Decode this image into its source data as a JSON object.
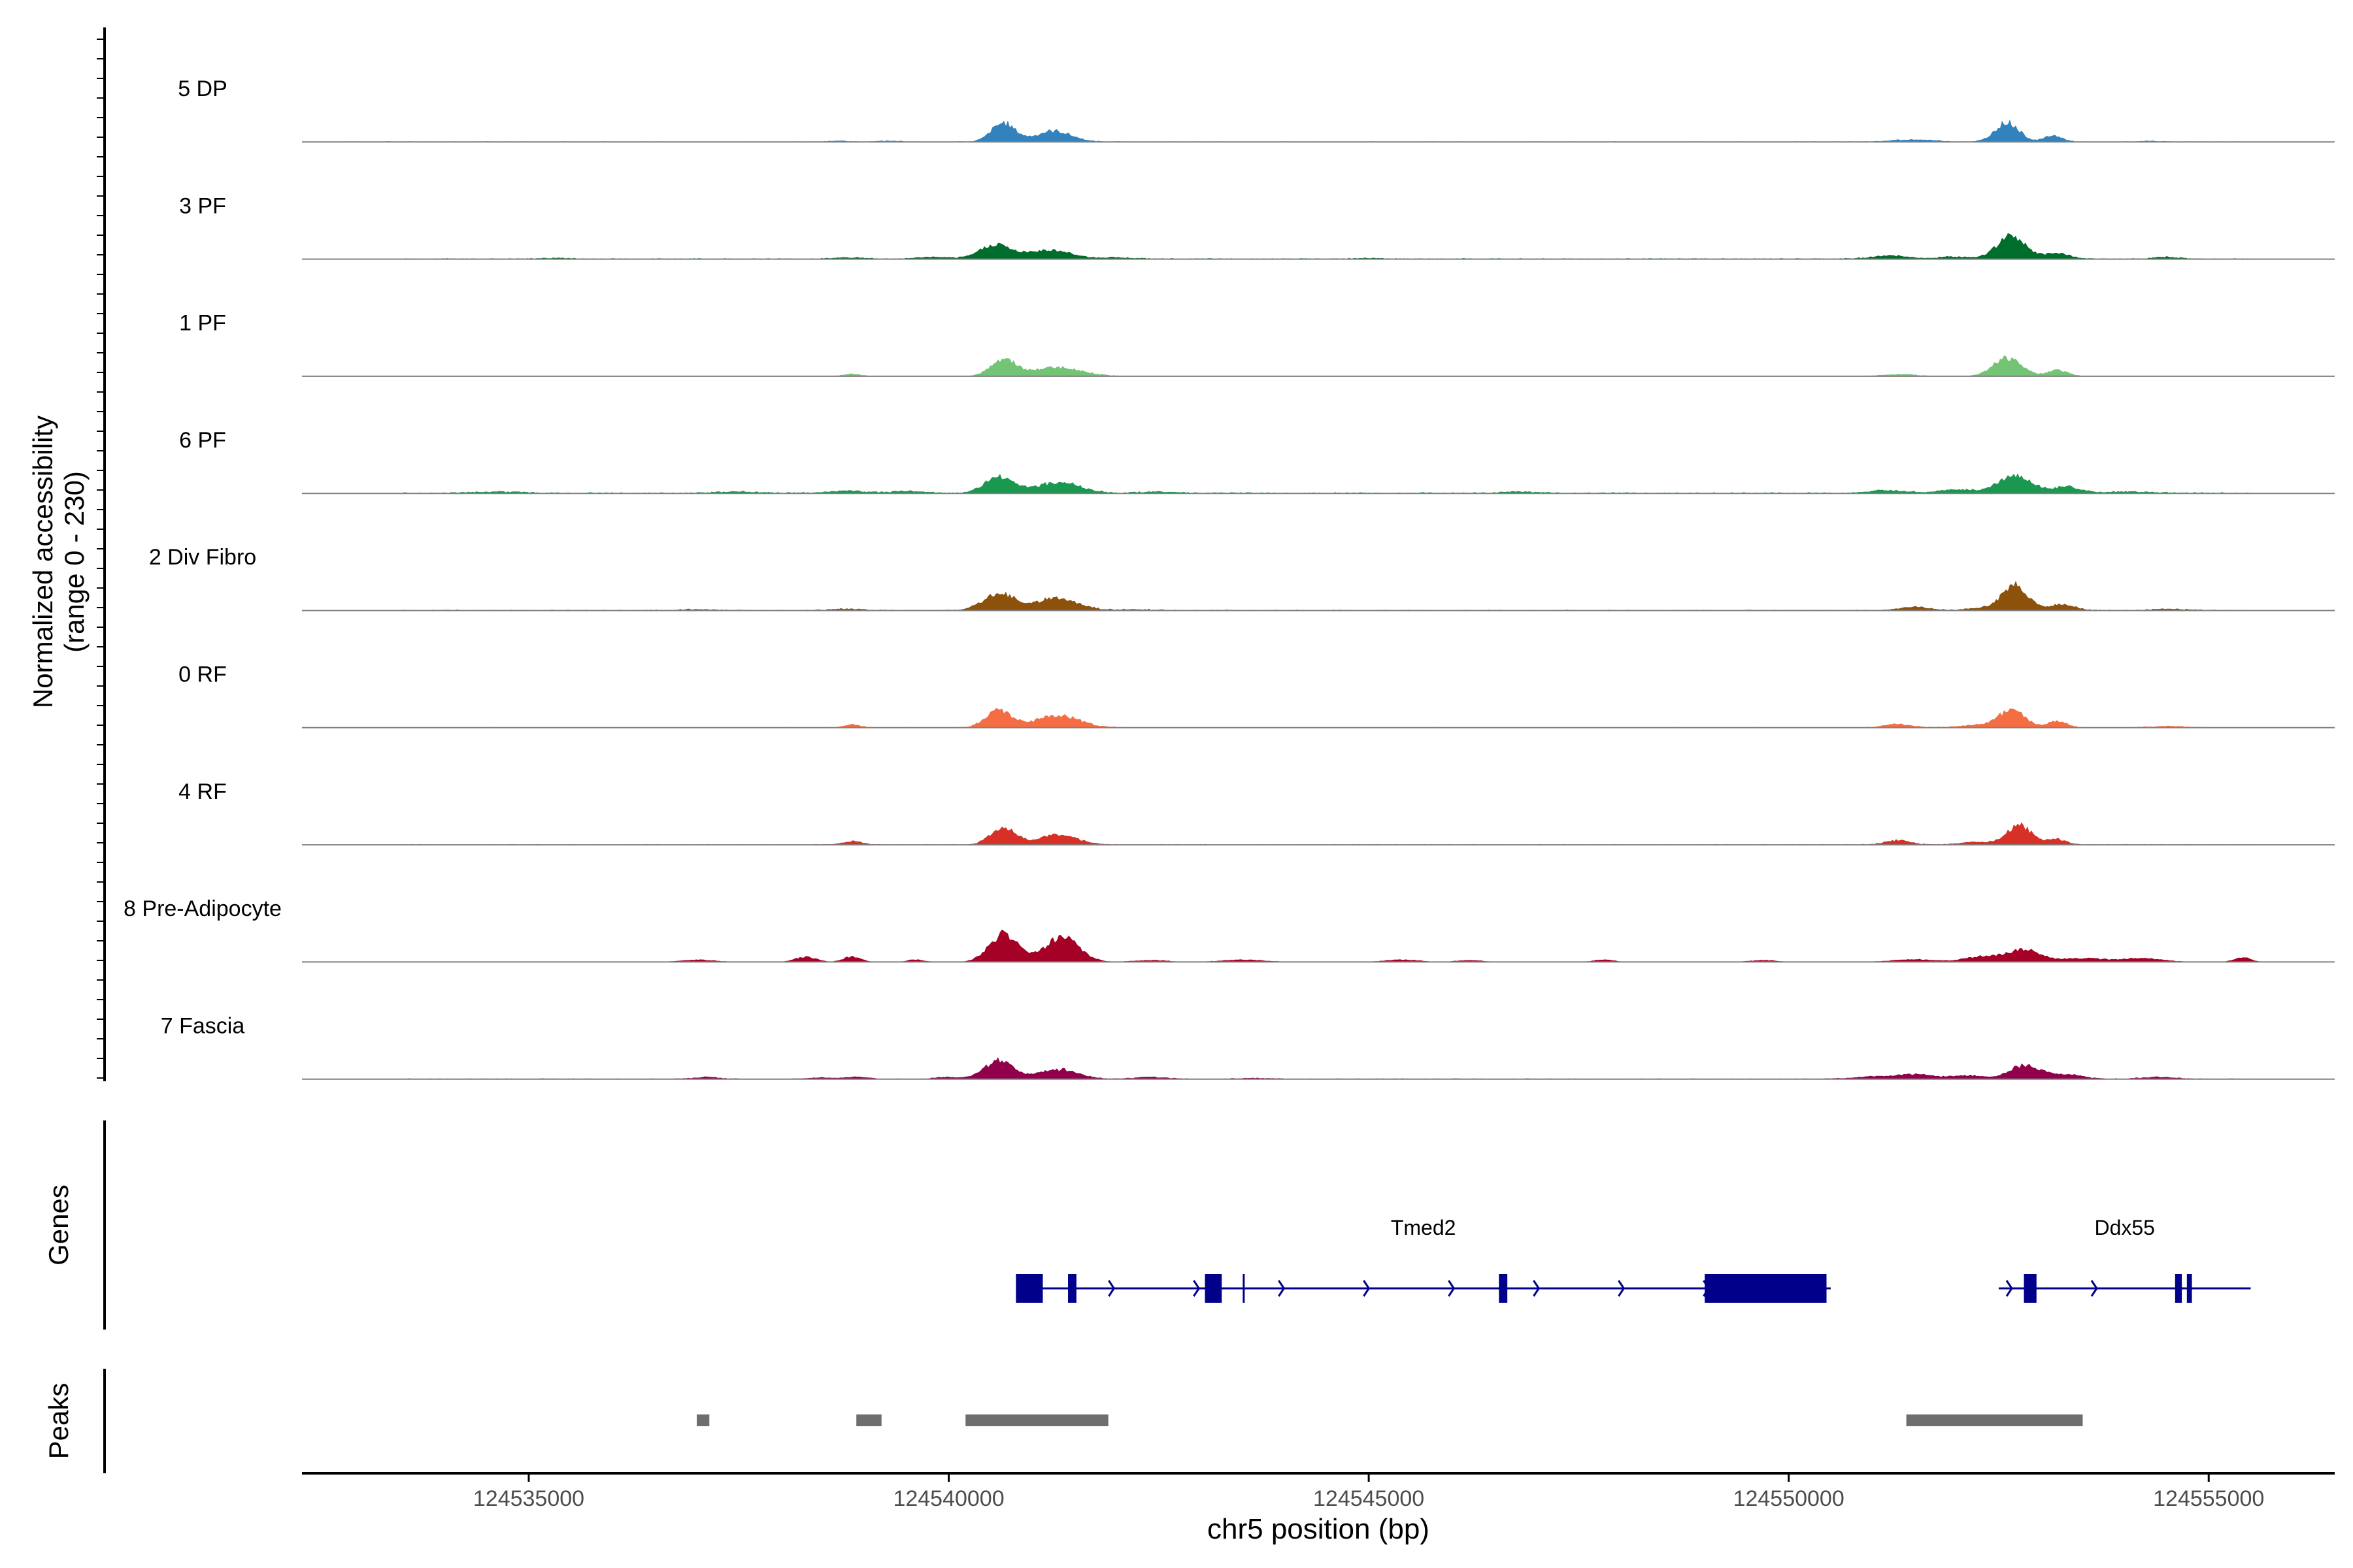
{
  "chart_data": {
    "type": "area",
    "title": "",
    "ylabel_line1": "Normalized accessibility",
    "ylabel_line2": "(range 0 - 230)",
    "y_range": [
      0,
      230
    ],
    "xlabel": "chr5 position (bp)",
    "x_range": [
      124532300,
      124556500
    ],
    "x_ticks": [
      124535000,
      124540000,
      124545000,
      124550000,
      124555000
    ],
    "x_tick_labels": [
      "124535000",
      "124540000",
      "124545000",
      "124550000",
      "124555000"
    ],
    "tracks": [
      {
        "name": "5 DP",
        "color": "#3182bd",
        "peaks": [
          [
            124538700,
            3,
            90
          ],
          [
            124539300,
            2,
            120
          ],
          [
            124540650,
            42,
            140
          ],
          [
            124541250,
            24,
            210
          ],
          [
            124551500,
            5,
            250
          ],
          [
            124552600,
            44,
            140
          ],
          [
            124553150,
            14,
            110
          ],
          [
            124554300,
            2,
            100
          ]
        ],
        "noise": 1.5,
        "spread": [
          124532600,
          124555500
        ]
      },
      {
        "name": "3 PF",
        "color": "#006d2c",
        "peaks": [
          [
            124535300,
            2,
            150
          ],
          [
            124538800,
            3,
            180
          ],
          [
            124539800,
            4,
            180
          ],
          [
            124540550,
            32,
            180
          ],
          [
            124541200,
            20,
            250
          ],
          [
            124542000,
            3,
            200
          ],
          [
            124545000,
            2,
            150
          ],
          [
            124551200,
            7,
            220
          ],
          [
            124552000,
            5,
            200
          ],
          [
            124552650,
            50,
            170
          ],
          [
            124553200,
            12,
            150
          ],
          [
            124554500,
            4,
            150
          ]
        ],
        "noise": 2.0,
        "spread": [
          124533500,
          124555500
        ]
      },
      {
        "name": "1 PF",
        "color": "#74c476",
        "peaks": [
          [
            124538850,
            5,
            100
          ],
          [
            124540650,
            38,
            150
          ],
          [
            124541300,
            20,
            280
          ],
          [
            124551300,
            4,
            200
          ],
          [
            124552600,
            40,
            170
          ],
          [
            124553200,
            13,
            120
          ]
        ],
        "noise": 1.0,
        "spread": [
          124533500,
          124555500
        ]
      },
      {
        "name": "6 PF",
        "color": "#1a9850",
        "peaks": [
          [
            124534600,
            3,
            300
          ],
          [
            124537500,
            3,
            250
          ],
          [
            124538800,
            5,
            200
          ],
          [
            124539500,
            4,
            200
          ],
          [
            124540600,
            36,
            170
          ],
          [
            124541300,
            24,
            260
          ],
          [
            124542500,
            3,
            200
          ],
          [
            124546800,
            3,
            200
          ],
          [
            124551200,
            6,
            220
          ],
          [
            124552000,
            8,
            200
          ],
          [
            124552700,
            38,
            200
          ],
          [
            124553300,
            14,
            150
          ],
          [
            124554000,
            3,
            300
          ]
        ],
        "noise": 2.5,
        "spread": [
          124533500,
          124555500
        ]
      },
      {
        "name": "2 Div Fibro",
        "color": "#8c510a",
        "peaks": [
          [
            124537000,
            2,
            200
          ],
          [
            124538800,
            3,
            200
          ],
          [
            124540600,
            38,
            190
          ],
          [
            124541300,
            28,
            240
          ],
          [
            124542200,
            2,
            200
          ],
          [
            124551500,
            8,
            160
          ],
          [
            124552350,
            6,
            200
          ],
          [
            124552700,
            55,
            150
          ],
          [
            124553250,
            14,
            150
          ],
          [
            124554500,
            3,
            200
          ]
        ],
        "noise": 2.0,
        "spread": [
          124533500,
          124555500
        ]
      },
      {
        "name": "0 RF",
        "color": "#f46d43",
        "peaks": [
          [
            124538850,
            7,
            90
          ],
          [
            124540600,
            40,
            150
          ],
          [
            124541300,
            28,
            250
          ],
          [
            124551300,
            8,
            150
          ],
          [
            124552200,
            5,
            200
          ],
          [
            124552650,
            38,
            160
          ],
          [
            124553200,
            14,
            110
          ],
          [
            124554500,
            3,
            200
          ]
        ],
        "noise": 1.5,
        "spread": [
          124533500,
          124555500
        ]
      },
      {
        "name": "4 RF",
        "color": "#d73027",
        "peaks": [
          [
            124538850,
            8,
            110
          ],
          [
            124540650,
            38,
            150
          ],
          [
            124541300,
            22,
            230
          ],
          [
            124551300,
            10,
            150
          ],
          [
            124552250,
            6,
            200
          ],
          [
            124552750,
            42,
            150
          ],
          [
            124553200,
            12,
            110
          ]
        ],
        "noise": 1.5,
        "spread": [
          124533500,
          124555500
        ]
      },
      {
        "name": "8 Pre-Adipocyte",
        "color": "#a50026",
        "peaks": [
          [
            124537000,
            5,
            200
          ],
          [
            124538300,
            12,
            120
          ],
          [
            124538850,
            12,
            100
          ],
          [
            124539600,
            5,
            100
          ],
          [
            124540650,
            62,
            170
          ],
          [
            124541350,
            55,
            200
          ],
          [
            124542400,
            4,
            200
          ],
          [
            124543500,
            5,
            250
          ],
          [
            124545400,
            5,
            200
          ],
          [
            124546200,
            4,
            150
          ],
          [
            124547800,
            5,
            120
          ],
          [
            124549700,
            4,
            150
          ],
          [
            124551500,
            6,
            250
          ],
          [
            124552300,
            12,
            200
          ],
          [
            124552800,
            28,
            200
          ],
          [
            124553500,
            8,
            250
          ],
          [
            124554200,
            8,
            250
          ],
          [
            124555400,
            10,
            100
          ]
        ],
        "noise": 0.5,
        "spread": [
          124537000,
          124555500
        ]
      },
      {
        "name": "7 Fascia",
        "color": "#91004b",
        "peaks": [
          [
            124537100,
            4,
            150
          ],
          [
            124538500,
            3,
            150
          ],
          [
            124538900,
            5,
            120
          ],
          [
            124540000,
            4,
            150
          ],
          [
            124540600,
            42,
            170
          ],
          [
            124541300,
            22,
            230
          ],
          [
            124542400,
            4,
            200
          ],
          [
            124543600,
            2,
            200
          ],
          [
            124551000,
            5,
            250
          ],
          [
            124551500,
            10,
            200
          ],
          [
            124552100,
            8,
            200
          ],
          [
            124552800,
            30,
            180
          ],
          [
            124553300,
            10,
            200
          ],
          [
            124554400,
            4,
            200
          ]
        ],
        "noise": 1.5,
        "spread": [
          124533500,
          124555500
        ]
      }
    ],
    "genes_label": "Genes",
    "genes": [
      {
        "name": "Tmed2",
        "start": 124540800,
        "end": 124550500,
        "exons": [
          [
            124540800,
            124541120
          ],
          [
            124541420,
            124541520
          ],
          [
            124543050,
            124543250
          ],
          [
            124543500,
            124543520
          ],
          [
            124546550,
            124546650
          ],
          [
            124549000,
            124550450
          ]
        ]
      },
      {
        "name": "Ddx55",
        "start": 124552500,
        "end": 124555500,
        "exons": [
          [
            124552800,
            124552950
          ],
          [
            124554600,
            124554680
          ],
          [
            124554740,
            124554800
          ]
        ]
      }
    ],
    "peaks_label": "Peaks",
    "peak_regions": [
      [
        124537000,
        124537150
      ],
      [
        124538900,
        124539200
      ],
      [
        124540200,
        124541900
      ],
      [
        124551400,
        124553500
      ]
    ]
  }
}
